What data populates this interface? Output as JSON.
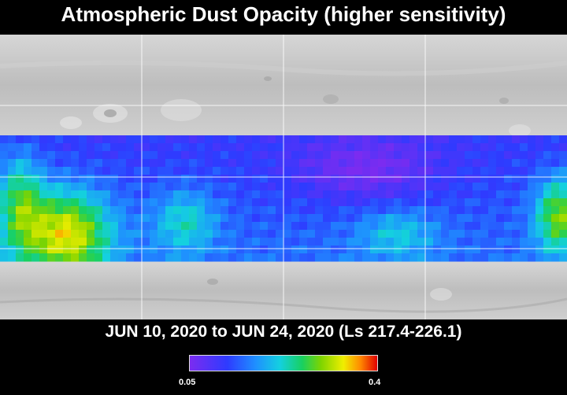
{
  "title": "Atmospheric Dust Opacity (higher sensitivity)",
  "date_range": "JUN 10, 2020 to JUN 24, 2020 (Ls 217.4-226.1)",
  "colorbar": {
    "min_label": "0.05",
    "max_label": "0.4",
    "min_value": 0.05,
    "max_value": 0.4
  },
  "colors": {
    "background": "#000000",
    "basemap": "#bcbcbc",
    "low": "#7b2cf0",
    "high": "#e00000"
  }
}
